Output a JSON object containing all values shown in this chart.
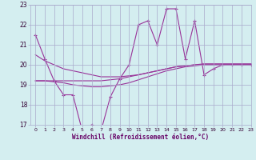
{
  "x": [
    0,
    1,
    2,
    3,
    4,
    5,
    6,
    7,
    8,
    9,
    10,
    11,
    12,
    13,
    14,
    15,
    16,
    17,
    18,
    19,
    20,
    21,
    22,
    23
  ],
  "windchill": [
    21.5,
    20.3,
    19.2,
    18.5,
    18.5,
    16.7,
    17.0,
    16.7,
    18.4,
    19.3,
    20.0,
    22.0,
    22.2,
    21.0,
    22.8,
    22.8,
    20.3,
    22.2,
    19.5,
    19.8,
    20.0,
    20.0,
    20.0,
    20.0
  ],
  "line_upper": [
    20.5,
    20.2,
    20.0,
    19.8,
    19.7,
    19.6,
    19.5,
    19.4,
    19.4,
    19.4,
    19.45,
    19.5,
    19.6,
    19.7,
    19.8,
    19.9,
    19.95,
    20.0,
    20.0,
    20.0,
    20.0,
    20.0,
    20.0,
    20.0
  ],
  "line_mid": [
    19.2,
    19.2,
    19.2,
    19.2,
    19.2,
    19.2,
    19.2,
    19.2,
    19.25,
    19.3,
    19.4,
    19.5,
    19.6,
    19.7,
    19.8,
    19.9,
    19.95,
    20.0,
    20.05,
    20.05,
    20.05,
    20.05,
    20.05,
    20.05
  ],
  "line_lower": [
    19.2,
    19.2,
    19.15,
    19.1,
    19.0,
    18.95,
    18.9,
    18.9,
    18.95,
    19.0,
    19.1,
    19.25,
    19.4,
    19.55,
    19.7,
    19.8,
    19.9,
    19.95,
    20.0,
    20.0,
    20.0,
    20.0,
    20.0,
    20.0
  ],
  "line_color": "#993399",
  "bg_color": "#d4eef0",
  "grid_color": "#aaaacc",
  "xlabel": "Windchill (Refroidissement éolien,°C)",
  "ylim": [
    17,
    23
  ],
  "xlim": [
    -0.5,
    23
  ],
  "yticks": [
    17,
    18,
    19,
    20,
    21,
    22,
    23
  ],
  "xticks": [
    0,
    1,
    2,
    3,
    4,
    5,
    6,
    7,
    8,
    9,
    10,
    11,
    12,
    13,
    14,
    15,
    16,
    17,
    18,
    19,
    20,
    21,
    22,
    23
  ],
  "xlabel_color": "#660066",
  "tick_label_color": "#330033"
}
